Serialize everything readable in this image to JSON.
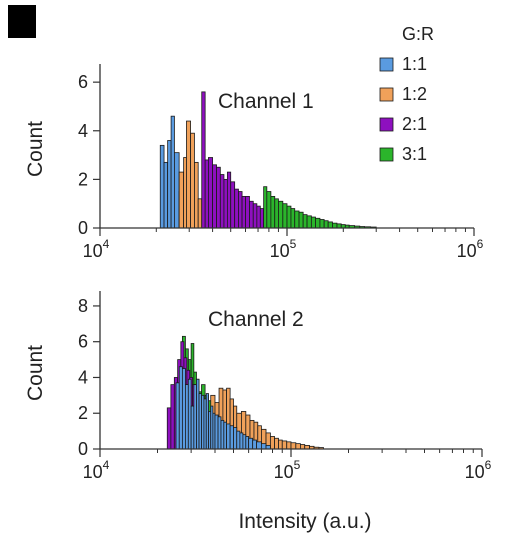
{
  "panel_marker": {
    "color": "#000000"
  },
  "legend": {
    "title": "G:R",
    "entries": [
      {
        "label": "1:1",
        "color": "#5a9be0"
      },
      {
        "label": "1:2",
        "color": "#f0a15a"
      },
      {
        "label": "2:1",
        "color": "#8e10bf"
      },
      {
        "label": "3:1",
        "color": "#2bb52b"
      }
    ]
  },
  "xaxis": {
    "label": "Intensity (a.u.)"
  },
  "chart_data": [
    {
      "type": "bar",
      "title": "Channel 1",
      "ylabel": "Count",
      "xscale": "log",
      "xlim": [
        10000,
        1000000
      ],
      "xticks": [
        {
          "base": "10",
          "exp": "4",
          "value": 10000
        },
        {
          "base": "10",
          "exp": "5",
          "value": 100000
        },
        {
          "base": "10",
          "exp": "6",
          "value": 1000000
        }
      ],
      "ylim": [
        0,
        6.5
      ],
      "yticks": [
        0,
        2,
        4,
        6
      ],
      "legend": "top-right",
      "series": [
        {
          "name": "1:1",
          "color": "#5a9be0",
          "x": [
            21000,
            22000,
            23000,
            24000,
            25000,
            26500
          ],
          "values": [
            3.4,
            2.7,
            3.6,
            4.6,
            3.1,
            1.5
          ]
        },
        {
          "name": "1:2",
          "color": "#f0a15a",
          "x": [
            26500,
            28000,
            29000,
            30500,
            32000,
            33500
          ],
          "values": [
            2.3,
            2.9,
            4.4,
            3.9,
            2.7,
            1.2
          ]
        },
        {
          "name": "2:1",
          "color": "#8e10bf",
          "x": [
            35000,
            36500,
            38000,
            40000,
            42000,
            44000,
            46000,
            48000,
            50000,
            52500,
            55000,
            57500,
            60000,
            63000,
            66000,
            69000,
            72000
          ],
          "values": [
            5.6,
            2.8,
            2.9,
            2.6,
            2.5,
            2.2,
            2.0,
            2.3,
            1.9,
            1.6,
            1.5,
            1.3,
            1.3,
            1.1,
            1.0,
            0.9,
            0.8
          ]
        },
        {
          "name": "3:1",
          "color": "#2bb52b",
          "x": [
            75000,
            78000,
            82000,
            86000,
            90000,
            95000,
            100000,
            105000,
            110000,
            116000,
            122000,
            128000,
            135000,
            142000,
            150000,
            158000,
            166000,
            175000,
            185000,
            195000,
            205000,
            215000,
            230000,
            245000,
            260000,
            280000
          ],
          "values": [
            1.7,
            1.5,
            1.3,
            1.2,
            1.1,
            1.0,
            0.9,
            0.8,
            0.7,
            0.65,
            0.55,
            0.5,
            0.45,
            0.4,
            0.35,
            0.3,
            0.25,
            0.2,
            0.17,
            0.14,
            0.12,
            0.1,
            0.08,
            0.06,
            0.05,
            0.04
          ]
        }
      ]
    },
    {
      "type": "bar",
      "title": "Channel 2",
      "ylabel": "Count",
      "xscale": "log",
      "xlim": [
        10000,
        1000000
      ],
      "xticks": [
        {
          "base": "10",
          "exp": "4",
          "value": 10000
        },
        {
          "base": "10",
          "exp": "5",
          "value": 100000
        },
        {
          "base": "10",
          "exp": "6",
          "value": 1000000
        }
      ],
      "ylim": [
        0,
        8.5
      ],
      "yticks": [
        0,
        2,
        4,
        6,
        8
      ],
      "legend": "none",
      "series": [
        {
          "name": "3:1",
          "color": "#2bb52b",
          "x": [
            25000,
            26000,
            27000,
            28000,
            29000,
            30000,
            31000,
            32000,
            33000,
            34000,
            35500,
            37000,
            38500,
            40000,
            42000,
            44000,
            46000,
            48000,
            50000
          ],
          "values": [
            3.5,
            4.5,
            6.3,
            5.6,
            5.0,
            5.9,
            4.3,
            3.9,
            3.2,
            3.6,
            3.0,
            2.7,
            2.4,
            2.2,
            2.0,
            1.8,
            1.6,
            2.4,
            1.3
          ]
        },
        {
          "name": "2:1",
          "color": "#8e10bf",
          "x": [
            22500,
            23500,
            24500,
            25500,
            26500,
            27500,
            28500,
            29500,
            30500,
            31500,
            32500,
            34000,
            35500,
            37000
          ],
          "values": [
            2.3,
            3.6,
            4.0,
            5.0,
            6.0,
            5.1,
            4.4,
            4.0,
            3.6,
            3.2,
            2.9,
            2.6,
            2.3,
            2.0
          ]
        },
        {
          "name": "1:2",
          "color": "#f0a15a",
          "x": [
            38000,
            40000,
            42000,
            44000,
            46000,
            48000,
            50000,
            52000,
            55000,
            58000,
            61000,
            64000,
            67000,
            70000,
            74000,
            78000,
            82000,
            86000,
            90000,
            95000,
            100000,
            106000,
            112000,
            118000,
            125000,
            132000,
            140000
          ],
          "values": [
            3.0,
            2.6,
            3.4,
            3.3,
            3.4,
            2.8,
            2.4,
            2.0,
            2.1,
            1.9,
            1.6,
            1.5,
            1.3,
            1.1,
            0.9,
            0.7,
            0.6,
            0.5,
            0.45,
            0.4,
            0.35,
            0.3,
            0.25,
            0.2,
            0.15,
            0.1,
            0.08
          ]
        },
        {
          "name": "1:1",
          "color": "#5a9be0",
          "x": [
            25000,
            26000,
            27000,
            28000,
            29000,
            30000,
            31000,
            32000,
            33000,
            34000,
            35000,
            36000,
            37000,
            38000,
            39000,
            40000,
            41500,
            43000,
            44500,
            46000,
            48000,
            50000,
            52000,
            54000,
            56000,
            58000,
            60000,
            63000,
            66000,
            70000,
            74000
          ],
          "values": [
            3.7,
            4.6,
            4.5,
            3.6,
            3.9,
            2.4,
            3.6,
            3.9,
            3.1,
            3.0,
            2.8,
            3.1,
            2.1,
            2.4,
            2.0,
            1.9,
            1.8,
            1.6,
            1.5,
            1.4,
            1.3,
            1.2,
            1.0,
            0.9,
            0.8,
            0.7,
            0.6,
            0.5,
            0.4,
            0.3,
            0.2
          ]
        }
      ]
    }
  ]
}
